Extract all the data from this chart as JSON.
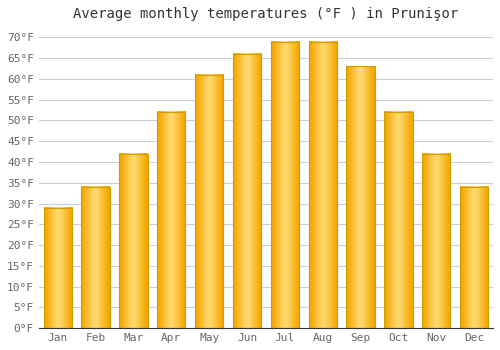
{
  "months": [
    "Jan",
    "Feb",
    "Mar",
    "Apr",
    "May",
    "Jun",
    "Jul",
    "Aug",
    "Sep",
    "Oct",
    "Nov",
    "Dec"
  ],
  "temperatures": [
    29,
    34,
    42,
    52,
    61,
    66,
    69,
    69,
    63,
    52,
    42,
    34
  ],
  "bar_color_center": "#FFD966",
  "bar_color_edge": "#F5A800",
  "bar_border_color": "#C8A000",
  "title": "Average monthly temperatures (°F ) in Prunişor",
  "ylim": [
    0,
    72
  ],
  "yticks": [
    0,
    5,
    10,
    15,
    20,
    25,
    30,
    35,
    40,
    45,
    50,
    55,
    60,
    65,
    70
  ],
  "ytick_labels": [
    "0°F",
    "5°F",
    "10°F",
    "15°F",
    "20°F",
    "25°F",
    "30°F",
    "35°F",
    "40°F",
    "45°F",
    "50°F",
    "55°F",
    "60°F",
    "65°F",
    "70°F"
  ],
  "background_color": "#ffffff",
  "grid_color": "#ccccdd",
  "title_fontsize": 10,
  "tick_fontsize": 8,
  "font_family": "monospace",
  "tick_color": "#666666"
}
